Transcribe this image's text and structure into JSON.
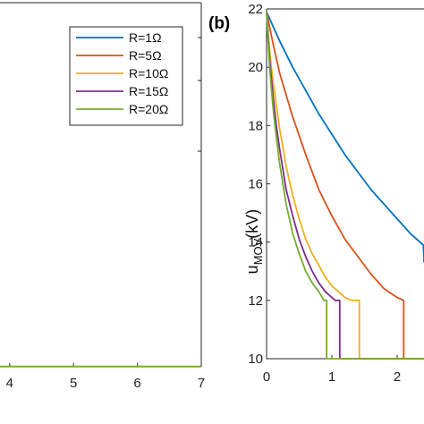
{
  "chart_data": [
    {
      "panel": "left (cropped)",
      "type": "line",
      "title": "",
      "xlabel": "",
      "ylabel": "",
      "xlim": [
        3,
        7
      ],
      "x_ticks": [
        "4",
        "5",
        "6",
        "7"
      ],
      "legend": {
        "position": "top-right",
        "entries": [
          {
            "name": "R=1Ω",
            "color": "#0072BD"
          },
          {
            "name": "R=5Ω",
            "color": "#D95319"
          },
          {
            "name": "R=10Ω",
            "color": "#EDB120"
          },
          {
            "name": "R=15Ω",
            "color": "#7E2F8E"
          },
          {
            "name": "R=20Ω",
            "color": "#77AC30"
          }
        ]
      },
      "series": [
        {
          "name": "R=20Ω",
          "color": "#77AC30",
          "x": [
            3,
            7
          ],
          "y": [
            0,
            0
          ]
        }
      ]
    },
    {
      "panel": "(b)",
      "panel_label": "(b)",
      "type": "line",
      "title": "",
      "xlabel": "",
      "ylabel_main": "u",
      "ylabel_sub": "MOV",
      "ylabel_unit": "(kV)",
      "xlim": [
        0,
        2.7
      ],
      "ylim": [
        10,
        22
      ],
      "x_ticks": [
        "0",
        "1",
        "2"
      ],
      "y_ticks": [
        "10",
        "12",
        "14",
        "16",
        "18",
        "20",
        "22"
      ],
      "series": [
        {
          "name": "R=1Ω",
          "color": "#0072BD",
          "x": [
            0,
            0.2,
            0.4,
            0.6,
            0.8,
            1.0,
            1.2,
            1.4,
            1.6,
            1.8,
            2.0,
            2.2,
            2.4,
            2.6,
            2.7
          ],
          "y": [
            21.9,
            20.9,
            20.0,
            19.2,
            18.4,
            17.7,
            17.0,
            16.4,
            15.8,
            15.3,
            14.8,
            14.3,
            13.9,
            13.5,
            13.3
          ]
        },
        {
          "name": "R=5Ω",
          "color": "#D95319",
          "x": [
            0,
            0.1,
            0.2,
            0.4,
            0.6,
            0.8,
            1.0,
            1.2,
            1.4,
            1.6,
            1.8,
            2.0,
            2.1,
            2.1,
            2.7
          ],
          "y": [
            21.9,
            20.8,
            19.8,
            18.3,
            17.0,
            15.8,
            14.9,
            14.1,
            13.5,
            12.9,
            12.4,
            12.1,
            12.0,
            10.0,
            10.0
          ]
        },
        {
          "name": "R=10Ω",
          "color": "#EDB120",
          "x": [
            0,
            0.05,
            0.1,
            0.2,
            0.3,
            0.4,
            0.5,
            0.6,
            0.7,
            0.8,
            0.9,
            1.0,
            1.1,
            1.2,
            1.3,
            1.42,
            1.42,
            2.7
          ],
          "y": [
            21.9,
            20.5,
            19.5,
            17.9,
            16.6,
            15.6,
            14.8,
            14.1,
            13.6,
            13.2,
            12.8,
            12.5,
            12.3,
            12.1,
            12.0,
            12.0,
            10.0,
            10.0
          ]
        },
        {
          "name": "R=15Ω",
          "color": "#7E2F8E",
          "x": [
            0,
            0.05,
            0.1,
            0.15,
            0.2,
            0.3,
            0.4,
            0.5,
            0.6,
            0.7,
            0.8,
            0.9,
            1.0,
            1.05,
            1.12,
            1.12,
            2.7
          ],
          "y": [
            21.9,
            20.2,
            19.0,
            18.0,
            17.2,
            15.8,
            14.9,
            14.1,
            13.5,
            13.0,
            12.6,
            12.3,
            12.1,
            12.0,
            12.0,
            10.0,
            10.0
          ]
        },
        {
          "name": "R=20Ω",
          "color": "#77AC30",
          "x": [
            0,
            0.05,
            0.1,
            0.15,
            0.2,
            0.3,
            0.4,
            0.5,
            0.6,
            0.7,
            0.8,
            0.88,
            0.92,
            0.92,
            2.7
          ],
          "y": [
            21.9,
            19.9,
            18.6,
            17.6,
            16.7,
            15.3,
            14.3,
            13.6,
            13.0,
            12.6,
            12.3,
            12.0,
            12.0,
            10.0,
            10.0
          ]
        }
      ]
    }
  ]
}
